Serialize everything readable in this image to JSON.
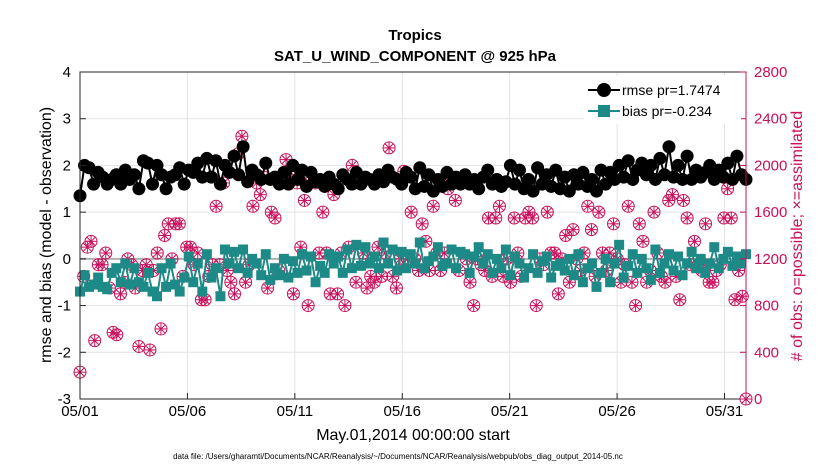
{
  "chart_data": {
    "type": "line",
    "title": "Tropics",
    "subtitle": "SAT_U_WIND_COMPONENT @ 925 hPa",
    "xlabel": "May.01,2014 00:00:00 start",
    "ylabel": "rmse and bias (model - observation)",
    "y2label": "# of obs: o=possible; ×=assimilated",
    "footnote": "data file: /Users/gharamti/Documents/NCAR/Reanalysis/~/Documents/NCAR/Reanalysis/webpub/obs_diag_output_2014-05.nc",
    "xlim": [
      1,
      32
    ],
    "ylim": [
      -3,
      4
    ],
    "y2lim": [
      0,
      2800
    ],
    "x_ticks": [
      1,
      6,
      11,
      16,
      21,
      26,
      31
    ],
    "x_ticklabels": [
      "05/01",
      "05/06",
      "05/11",
      "05/16",
      "05/21",
      "05/26",
      "05/31"
    ],
    "y_ticks": [
      -3,
      -2,
      -1,
      0,
      1,
      2,
      3,
      4
    ],
    "y2_ticks": [
      0,
      400,
      800,
      1200,
      1600,
      2000,
      2400,
      2800
    ],
    "zero_line": 0,
    "legend_position": "top-right",
    "colors": {
      "rmse": "#000000",
      "bias": "#1e8a87",
      "obs": "#c8105b",
      "zero": "#b0b0b0"
    },
    "series": [
      {
        "name": "rmse pr=1.7474",
        "values": [
          1.35,
          2.0,
          1.95,
          1.6,
          1.85,
          1.75,
          1.6,
          1.7,
          1.8,
          1.6,
          1.9,
          1.7,
          1.8,
          1.5,
          2.1,
          2.05,
          1.6,
          2.0,
          1.8,
          1.5,
          1.75,
          1.8,
          1.95,
          1.6,
          1.9,
          1.85,
          2.05,
          1.75,
          2.15,
          1.75,
          2.1,
          1.6,
          2.0,
          1.85,
          2.2,
          1.8,
          2.4,
          1.65,
          1.9,
          1.8,
          1.7,
          2.05,
          1.7,
          1.75,
          1.6,
          1.85,
          1.6,
          2.0,
          1.7,
          1.9,
          1.55,
          1.85,
          1.65,
          1.7,
          1.55,
          1.75,
          1.6,
          1.5,
          1.8,
          1.7,
          1.6,
          1.85,
          1.6,
          1.75,
          1.7,
          1.6,
          1.8,
          1.65,
          1.9,
          1.75,
          1.7,
          1.6,
          1.85,
          1.75,
          1.5,
          1.95,
          1.55,
          1.8,
          1.45,
          1.7,
          1.55,
          1.85,
          1.6,
          1.75,
          1.6,
          1.8,
          1.6,
          1.7,
          1.5,
          1.75,
          1.9,
          1.6,
          1.7,
          1.55,
          1.65,
          2.0,
          1.6,
          1.9,
          1.5,
          1.7,
          1.45,
          1.95,
          1.6,
          1.8,
          1.55,
          1.9,
          1.5,
          1.75,
          1.45,
          1.8,
          1.6,
          1.85,
          1.55,
          1.7,
          1.45,
          1.9,
          1.6,
          1.85,
          1.7,
          2.0,
          1.75,
          2.1,
          1.7,
          1.9,
          2.05,
          1.8,
          2.0,
          1.7,
          2.15,
          1.8,
          2.4,
          1.75,
          2.0,
          1.7,
          2.2,
          1.7,
          1.9,
          1.75,
          1.85,
          2.0,
          1.7,
          1.9,
          1.75,
          2.05,
          1.7,
          2.2,
          1.8,
          1.7
        ]
      },
      {
        "name": "bias pr=-0.234",
        "values": [
          -0.7,
          -0.35,
          -0.6,
          -0.55,
          -0.4,
          -0.6,
          -0.65,
          -0.3,
          -0.2,
          -0.5,
          -0.1,
          -0.55,
          -0.2,
          -0.5,
          -0.6,
          -0.3,
          -0.7,
          -0.8,
          -0.2,
          -0.6,
          -0.1,
          -0.55,
          -0.7,
          -0.4,
          0.05,
          -0.5,
          -0.1,
          -0.7,
          0.1,
          -0.4,
          -0.2,
          -0.8,
          0.2,
          -0.1,
          0.15,
          -0.2,
          0.2,
          -0.3,
          0.0,
          -0.1,
          -0.35,
          0.1,
          -0.45,
          -0.2,
          -0.35,
          0.0,
          -0.4,
          -0.05,
          -0.3,
          0.1,
          -0.25,
          0.05,
          -0.5,
          -0.15,
          -0.3,
          0.1,
          -0.1,
          0.05,
          -0.3,
          0.2,
          -0.2,
          0.3,
          -0.15,
          0.25,
          -0.1,
          0.05,
          -0.2,
          0.35,
          -0.1,
          0.2,
          -0.25,
          0.15,
          -0.2,
          0.1,
          -0.1,
          0.35,
          -0.2,
          -0.05,
          0.05,
          0.25,
          -0.15,
          -0.1,
          0.2,
          -0.2,
          0.15,
          0.1,
          -0.3,
          0.05,
          0.25,
          -0.1,
          0.1,
          -0.3,
          0.0,
          -0.2,
          0.2,
          -0.35,
          0.05,
          -0.1,
          -0.4,
          -0.2,
          0.1,
          -0.3,
          -0.05,
          0.05,
          -0.4,
          -0.15,
          -0.1,
          -0.25,
          0.0,
          -0.35,
          0.1,
          -0.5,
          -0.2,
          -0.1,
          -0.6,
          -0.3,
          0.0,
          -0.5,
          -0.1,
          0.3,
          -0.4,
          -0.15,
          0.1,
          -0.3,
          0.0,
          -0.2,
          -0.45,
          0.2,
          -0.3,
          -0.1,
          0.1,
          -0.25,
          0.05,
          -0.35,
          -0.1,
          0.15,
          -0.2,
          0.0,
          -0.3,
          -0.1,
          0.25,
          -0.2,
          0.0,
          0.15,
          -0.15,
          0.05,
          -0.1,
          0.1
        ]
      },
      {
        "name": "obs possible",
        "values": [
          230,
          1050,
          1300,
          1350,
          500,
          1150,
          1150,
          1250,
          950,
          570,
          550,
          900,
          1000,
          1200,
          1150,
          950,
          450,
          1100,
          1150,
          420,
          1100,
          1250,
          600,
          1400,
          1500,
          1200,
          1500,
          1500,
          1050,
          1300,
          1300,
          1150,
          1250,
          850,
          850,
          1050,
          1150,
          1650,
          1150,
          1850,
          1100,
          1000,
          900,
          2100,
          2250,
          1000,
          1150,
          1650,
          1850,
          1750,
          1900,
          950,
          1600,
          1550,
          1100,
          1900,
          2050,
          1950,
          900,
          1850,
          1300,
          1700,
          800,
          1900,
          1850,
          1250,
          1600,
          1250,
          900,
          1750,
          900,
          1250,
          800,
          1300,
          2000,
          1000,
          1850,
          1250,
          950,
          1050,
          1000,
          1300,
          1050,
          1250,
          2150,
          1050,
          950,
          1200,
          1950,
          1200,
          1600,
          1200,
          1100,
          1500,
          1350,
          1100,
          1650,
          1250,
          1100,
          1250,
          1800,
          1900,
          1700,
          1100,
          1850,
          1200,
          1000,
          800,
          1200,
          1150,
          1100,
          1550,
          1050,
          1550,
          1650,
          1050,
          1200,
          1000,
          1550,
          1250,
          1050,
          1550,
          1600,
          1550,
          800,
          1200,
          1150,
          1600,
          1250,
          1250,
          900,
          1200,
          1400,
          1000,
          1450,
          1200,
          1100,
          1250,
          1650,
          1450,
          1050,
          1600,
          1250,
          1100,
          1250,
          1500,
          1200,
          1000,
          1150,
          1650,
          1000,
          800,
          1500,
          1350,
          1000,
          1100,
          1600,
          1250,
          1050,
          1000,
          1700,
          1750,
          1050,
          850,
          1700,
          1550,
          1150,
          1350,
          1150,
          1100,
          1500,
          1000,
          1000,
          1100,
          1150,
          1550,
          1800,
          1550,
          850,
          1100,
          880,
          0
        ]
      }
    ]
  }
}
